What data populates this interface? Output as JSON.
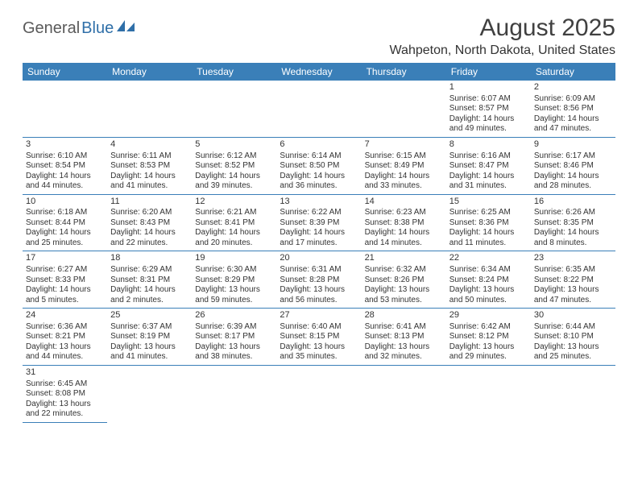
{
  "logo": {
    "part1": "General",
    "part2": "Blue"
  },
  "title": "August 2025",
  "location": "Wahpeton, North Dakota, United States",
  "header_bg": "#3a7fb8",
  "header_text_color": "#ffffff",
  "border_color": "#3a7fb8",
  "days": [
    "Sunday",
    "Monday",
    "Tuesday",
    "Wednesday",
    "Thursday",
    "Friday",
    "Saturday"
  ],
  "weeks": [
    [
      null,
      null,
      null,
      null,
      null,
      {
        "n": "1",
        "sr": "Sunrise: 6:07 AM",
        "ss": "Sunset: 8:57 PM",
        "dl": "Daylight: 14 hours and 49 minutes."
      },
      {
        "n": "2",
        "sr": "Sunrise: 6:09 AM",
        "ss": "Sunset: 8:56 PM",
        "dl": "Daylight: 14 hours and 47 minutes."
      }
    ],
    [
      {
        "n": "3",
        "sr": "Sunrise: 6:10 AM",
        "ss": "Sunset: 8:54 PM",
        "dl": "Daylight: 14 hours and 44 minutes."
      },
      {
        "n": "4",
        "sr": "Sunrise: 6:11 AM",
        "ss": "Sunset: 8:53 PM",
        "dl": "Daylight: 14 hours and 41 minutes."
      },
      {
        "n": "5",
        "sr": "Sunrise: 6:12 AM",
        "ss": "Sunset: 8:52 PM",
        "dl": "Daylight: 14 hours and 39 minutes."
      },
      {
        "n": "6",
        "sr": "Sunrise: 6:14 AM",
        "ss": "Sunset: 8:50 PM",
        "dl": "Daylight: 14 hours and 36 minutes."
      },
      {
        "n": "7",
        "sr": "Sunrise: 6:15 AM",
        "ss": "Sunset: 8:49 PM",
        "dl": "Daylight: 14 hours and 33 minutes."
      },
      {
        "n": "8",
        "sr": "Sunrise: 6:16 AM",
        "ss": "Sunset: 8:47 PM",
        "dl": "Daylight: 14 hours and 31 minutes."
      },
      {
        "n": "9",
        "sr": "Sunrise: 6:17 AM",
        "ss": "Sunset: 8:46 PM",
        "dl": "Daylight: 14 hours and 28 minutes."
      }
    ],
    [
      {
        "n": "10",
        "sr": "Sunrise: 6:18 AM",
        "ss": "Sunset: 8:44 PM",
        "dl": "Daylight: 14 hours and 25 minutes."
      },
      {
        "n": "11",
        "sr": "Sunrise: 6:20 AM",
        "ss": "Sunset: 8:43 PM",
        "dl": "Daylight: 14 hours and 22 minutes."
      },
      {
        "n": "12",
        "sr": "Sunrise: 6:21 AM",
        "ss": "Sunset: 8:41 PM",
        "dl": "Daylight: 14 hours and 20 minutes."
      },
      {
        "n": "13",
        "sr": "Sunrise: 6:22 AM",
        "ss": "Sunset: 8:39 PM",
        "dl": "Daylight: 14 hours and 17 minutes."
      },
      {
        "n": "14",
        "sr": "Sunrise: 6:23 AM",
        "ss": "Sunset: 8:38 PM",
        "dl": "Daylight: 14 hours and 14 minutes."
      },
      {
        "n": "15",
        "sr": "Sunrise: 6:25 AM",
        "ss": "Sunset: 8:36 PM",
        "dl": "Daylight: 14 hours and 11 minutes."
      },
      {
        "n": "16",
        "sr": "Sunrise: 6:26 AM",
        "ss": "Sunset: 8:35 PM",
        "dl": "Daylight: 14 hours and 8 minutes."
      }
    ],
    [
      {
        "n": "17",
        "sr": "Sunrise: 6:27 AM",
        "ss": "Sunset: 8:33 PM",
        "dl": "Daylight: 14 hours and 5 minutes."
      },
      {
        "n": "18",
        "sr": "Sunrise: 6:29 AM",
        "ss": "Sunset: 8:31 PM",
        "dl": "Daylight: 14 hours and 2 minutes."
      },
      {
        "n": "19",
        "sr": "Sunrise: 6:30 AM",
        "ss": "Sunset: 8:29 PM",
        "dl": "Daylight: 13 hours and 59 minutes."
      },
      {
        "n": "20",
        "sr": "Sunrise: 6:31 AM",
        "ss": "Sunset: 8:28 PM",
        "dl": "Daylight: 13 hours and 56 minutes."
      },
      {
        "n": "21",
        "sr": "Sunrise: 6:32 AM",
        "ss": "Sunset: 8:26 PM",
        "dl": "Daylight: 13 hours and 53 minutes."
      },
      {
        "n": "22",
        "sr": "Sunrise: 6:34 AM",
        "ss": "Sunset: 8:24 PM",
        "dl": "Daylight: 13 hours and 50 minutes."
      },
      {
        "n": "23",
        "sr": "Sunrise: 6:35 AM",
        "ss": "Sunset: 8:22 PM",
        "dl": "Daylight: 13 hours and 47 minutes."
      }
    ],
    [
      {
        "n": "24",
        "sr": "Sunrise: 6:36 AM",
        "ss": "Sunset: 8:21 PM",
        "dl": "Daylight: 13 hours and 44 minutes."
      },
      {
        "n": "25",
        "sr": "Sunrise: 6:37 AM",
        "ss": "Sunset: 8:19 PM",
        "dl": "Daylight: 13 hours and 41 minutes."
      },
      {
        "n": "26",
        "sr": "Sunrise: 6:39 AM",
        "ss": "Sunset: 8:17 PM",
        "dl": "Daylight: 13 hours and 38 minutes."
      },
      {
        "n": "27",
        "sr": "Sunrise: 6:40 AM",
        "ss": "Sunset: 8:15 PM",
        "dl": "Daylight: 13 hours and 35 minutes."
      },
      {
        "n": "28",
        "sr": "Sunrise: 6:41 AM",
        "ss": "Sunset: 8:13 PM",
        "dl": "Daylight: 13 hours and 32 minutes."
      },
      {
        "n": "29",
        "sr": "Sunrise: 6:42 AM",
        "ss": "Sunset: 8:12 PM",
        "dl": "Daylight: 13 hours and 29 minutes."
      },
      {
        "n": "30",
        "sr": "Sunrise: 6:44 AM",
        "ss": "Sunset: 8:10 PM",
        "dl": "Daylight: 13 hours and 25 minutes."
      }
    ],
    [
      {
        "n": "31",
        "sr": "Sunrise: 6:45 AM",
        "ss": "Sunset: 8:08 PM",
        "dl": "Daylight: 13 hours and 22 minutes."
      },
      null,
      null,
      null,
      null,
      null,
      null
    ]
  ]
}
